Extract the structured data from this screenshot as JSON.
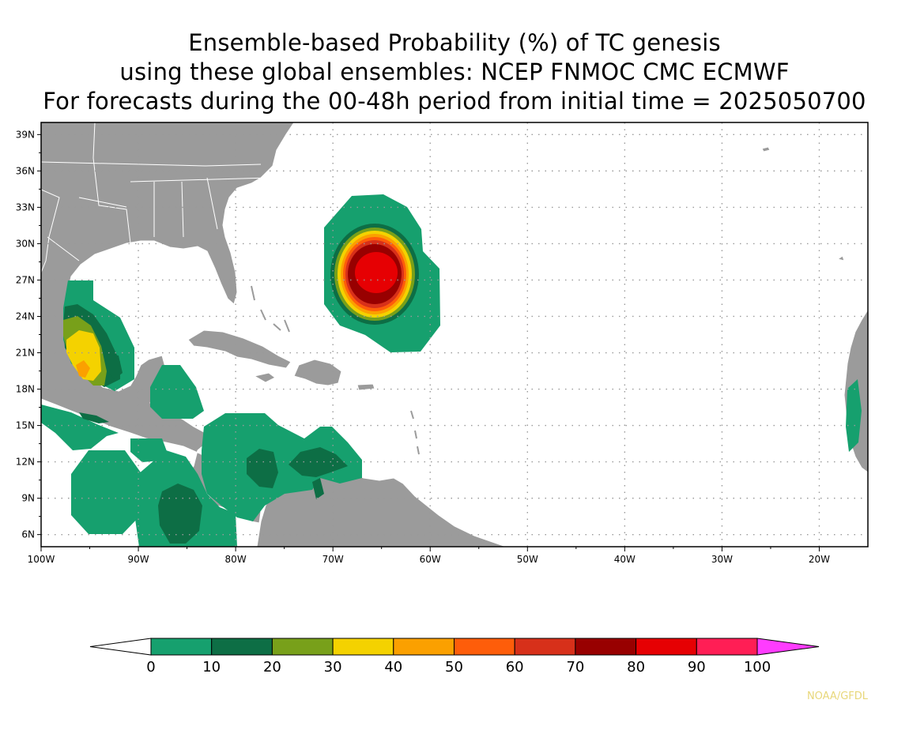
{
  "title": {
    "line1": "Ensemble-based Probability (%) of TC genesis",
    "line2": "using these global ensembles:   NCEP FNMOC CMC ECMWF",
    "line3": "For forecasts during the 00-48h period from initial time = 2025050700"
  },
  "map": {
    "lon_range": [
      -100,
      -15
    ],
    "lat_range": [
      5,
      40
    ],
    "lon_ticks": [
      {
        "value": -100,
        "label": "100W"
      },
      {
        "value": -90,
        "label": "90W"
      },
      {
        "value": -80,
        "label": "80W"
      },
      {
        "value": -70,
        "label": "70W"
      },
      {
        "value": -60,
        "label": "60W"
      },
      {
        "value": -50,
        "label": "50W"
      },
      {
        "value": -40,
        "label": "40W"
      },
      {
        "value": -30,
        "label": "30W"
      },
      {
        "value": -20,
        "label": "20W"
      }
    ],
    "lat_ticks": [
      {
        "value": 6,
        "label": "6N"
      },
      {
        "value": 9,
        "label": "9N"
      },
      {
        "value": 12,
        "label": "12N"
      },
      {
        "value": 15,
        "label": "15N"
      },
      {
        "value": 18,
        "label": "18N"
      },
      {
        "value": 21,
        "label": "21N"
      },
      {
        "value": 24,
        "label": "24N"
      },
      {
        "value": 27,
        "label": "27N"
      },
      {
        "value": 30,
        "label": "30N"
      },
      {
        "value": 33,
        "label": "33N"
      },
      {
        "value": 36,
        "label": "36N"
      },
      {
        "value": 39,
        "label": "39N"
      }
    ],
    "grid": true,
    "land_color": "#9b9b9b",
    "ocean_color": "#ffffff"
  },
  "colorbar": {
    "levels": [
      "0",
      "10",
      "20",
      "30",
      "40",
      "50",
      "60",
      "70",
      "80",
      "90",
      "100"
    ],
    "colors": [
      "#16a06e",
      "#0d6e45",
      "#78a01a",
      "#f4d200",
      "#fba000",
      "#fe5d0a",
      "#d7301a",
      "#980000",
      "#e60003",
      "#ff1e55"
    ],
    "under_color": "#ffffff",
    "over_color": "#ff3cff"
  },
  "credit": "NOAA/GFDL"
}
